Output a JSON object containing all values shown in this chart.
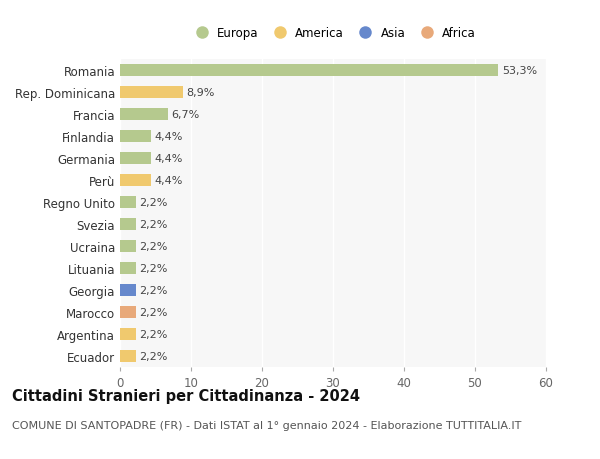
{
  "countries": [
    "Romania",
    "Rep. Dominicana",
    "Francia",
    "Finlandia",
    "Germania",
    "Perù",
    "Regno Unito",
    "Svezia",
    "Ucraina",
    "Lituania",
    "Georgia",
    "Marocco",
    "Argentina",
    "Ecuador"
  ],
  "values": [
    53.3,
    8.9,
    6.7,
    4.4,
    4.4,
    4.4,
    2.2,
    2.2,
    2.2,
    2.2,
    2.2,
    2.2,
    2.2,
    2.2
  ],
  "continents": [
    "Europa",
    "America",
    "Europa",
    "Europa",
    "Europa",
    "America",
    "Europa",
    "Europa",
    "Europa",
    "Europa",
    "Asia",
    "Africa",
    "America",
    "America"
  ],
  "colors": {
    "Europa": "#b5c98e",
    "America": "#f0c96e",
    "Asia": "#6688cc",
    "Africa": "#e8a97a"
  },
  "legend_order": [
    "Europa",
    "America",
    "Asia",
    "Africa"
  ],
  "xlim": [
    0,
    60
  ],
  "xticks": [
    0,
    10,
    20,
    30,
    40,
    50,
    60
  ],
  "title": "Cittadini Stranieri per Cittadinanza - 2024",
  "subtitle": "COMUNE DI SANTOPADRE (FR) - Dati ISTAT al 1° gennaio 2024 - Elaborazione TUTTITALIA.IT",
  "background_color": "#ffffff",
  "plot_background": "#f7f7f7",
  "grid_color": "#ffffff",
  "bar_height": 0.55,
  "title_fontsize": 10.5,
  "subtitle_fontsize": 8,
  "tick_fontsize": 8.5,
  "legend_fontsize": 8.5,
  "value_fontsize": 8
}
